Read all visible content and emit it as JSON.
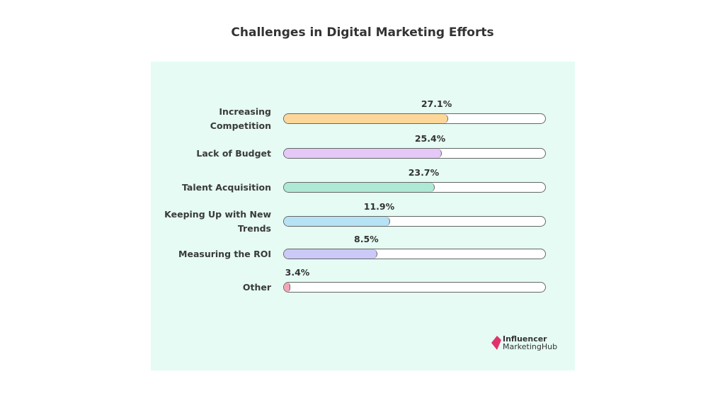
{
  "chart_data": {
    "type": "bar",
    "title": "Challenges in Digital Marketing Efforts",
    "categories": [
      "Increasing Competition",
      "Lack of Budget",
      "Talent Acquisition",
      "Keeping Up with New Trends",
      "Measuring the ROI",
      "Other"
    ],
    "category_lines": [
      [
        "Increasing",
        "Competition"
      ],
      [
        "Lack of Budget"
      ],
      [
        "Talent Acquisition"
      ],
      [
        "Keeping Up with New",
        "Trends"
      ],
      [
        "Measuring the ROI"
      ],
      [
        "Other"
      ]
    ],
    "values": [
      27.1,
      25.4,
      23.7,
      11.9,
      8.5,
      3.4
    ],
    "value_labels": [
      "27.1%",
      "25.4%",
      "23.7%",
      "11.9%",
      "8.5%",
      "3.4%"
    ],
    "colors": [
      "#fdd79a",
      "#e5c8f8",
      "#aee9d6",
      "#b5e2f5",
      "#cbc9f7",
      "#f3a6b6"
    ],
    "orientation": "horizontal",
    "xlabel": "",
    "ylabel": "",
    "grid": false
  },
  "logo": {
    "line1": "Influencer",
    "line2": "MarketingHub",
    "color": "#e0336a"
  }
}
